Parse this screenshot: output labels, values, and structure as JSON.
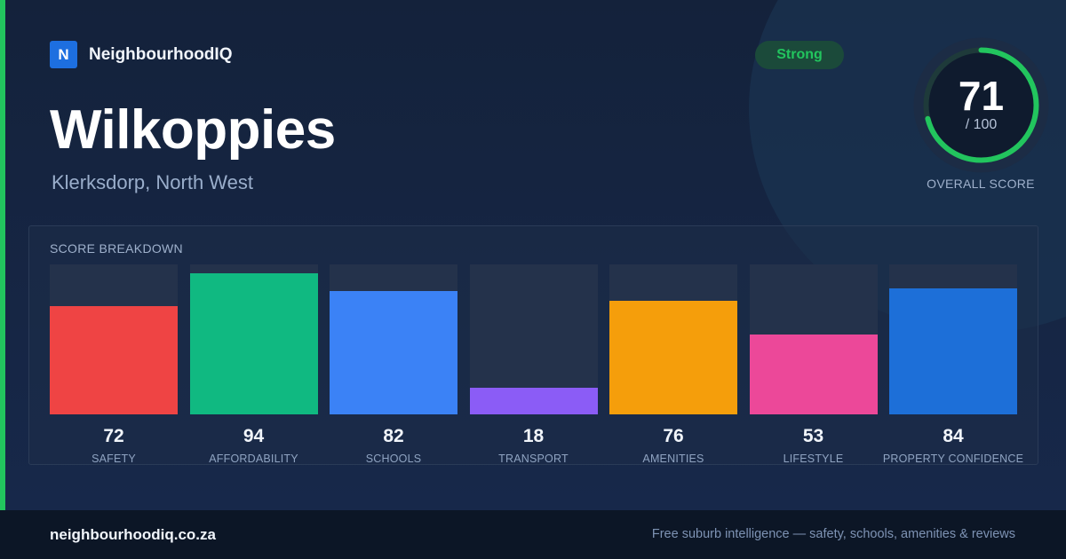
{
  "brand": {
    "logo_letter": "N",
    "name": "NeighbourhoodIQ"
  },
  "suburb": {
    "name": "Wilkoppies",
    "location": "Klerksdorp, North West"
  },
  "badge": {
    "label": "Strong",
    "color": "#22c55e"
  },
  "overall": {
    "score": "71",
    "max": "/ 100",
    "fraction": 0.71,
    "label": "OVERALL SCORE",
    "ring_color": "#22c55e"
  },
  "breakdown": {
    "label": "SCORE BREAKDOWN"
  },
  "chart_data": {
    "type": "bar",
    "title": "SCORE BREAKDOWN",
    "ylim": [
      0,
      100
    ],
    "grid": false,
    "categories": [
      "SAFETY",
      "AFFORDABILITY",
      "SCHOOLS",
      "TRANSPORT",
      "AMENITIES",
      "LIFESTYLE",
      "PROPERTY CONFIDENCE"
    ],
    "values": [
      72,
      94,
      82,
      18,
      76,
      53,
      84
    ],
    "colors": [
      "#ef4444",
      "#10b981",
      "#3b82f6",
      "#8b5cf6",
      "#f59e0b",
      "#ec4899",
      "#1d6fd8"
    ]
  },
  "footer": {
    "url": "neighbourhoodiq.co.za",
    "tagline": "Free suburb intelligence — safety, schools, amenities & reviews"
  }
}
